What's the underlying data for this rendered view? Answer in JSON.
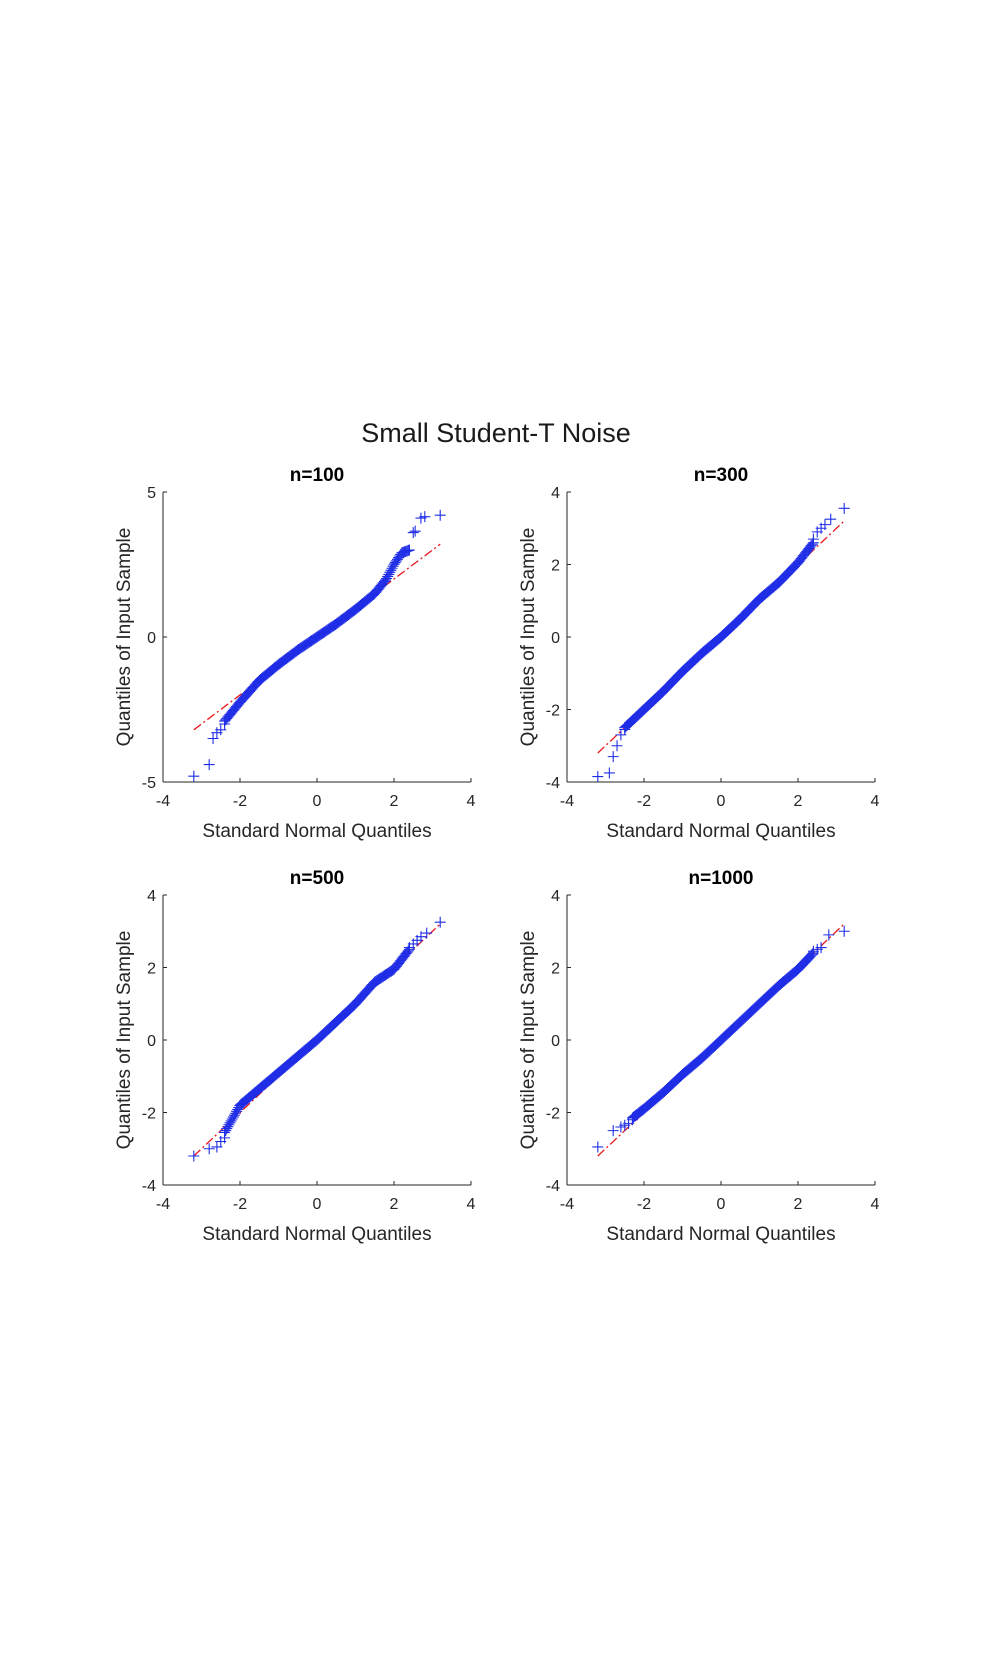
{
  "figure_title": "Small Student-T Noise",
  "colors": {
    "points": "#1f2de6",
    "fit_line": "#e8161b",
    "axes": "#262626"
  },
  "chart_data": [
    {
      "type": "scatter",
      "title": "n=100",
      "xlabel": "Standard Normal Quantiles",
      "ylabel": "Quantiles of Input Sample",
      "xlim": [
        -4,
        4
      ],
      "ylim": [
        -5,
        5
      ],
      "xticks": [
        -4,
        -2,
        0,
        2,
        4
      ],
      "yticks": [
        -5,
        0,
        5
      ],
      "marker": "plus",
      "reference_line": {
        "x": [
          -3.2,
          3.2
        ],
        "y": [
          -3.2,
          3.2
        ]
      },
      "sparse_points": {
        "x": [
          -3.2,
          -2.8,
          -2.7,
          -2.6,
          -2.5,
          -2.4,
          2.4,
          2.5,
          2.55,
          2.7,
          2.8,
          3.2
        ],
        "y": [
          -4.8,
          -4.4,
          -3.5,
          -3.3,
          -3.2,
          -3.0,
          3.0,
          3.6,
          3.65,
          4.1,
          4.15,
          4.2
        ]
      },
      "dense_curve": {
        "x": [
          -2.4,
          -2.0,
          -1.5,
          -1.0,
          -0.5,
          0.0,
          0.5,
          1.0,
          1.5,
          1.8,
          2.0,
          2.2,
          2.4
        ],
        "y": [
          -2.9,
          -2.25,
          -1.5,
          -0.95,
          -0.45,
          0.0,
          0.45,
          0.95,
          1.5,
          2.0,
          2.5,
          2.9,
          3.0
        ]
      }
    },
    {
      "type": "scatter",
      "title": "n=300",
      "xlabel": "Standard Normal Quantiles",
      "ylabel": "Quantiles of Input Sample",
      "xlim": [
        -4,
        4
      ],
      "ylim": [
        -4,
        4
      ],
      "xticks": [
        -4,
        -2,
        0,
        2,
        4
      ],
      "yticks": [
        -4,
        -2,
        0,
        2,
        4
      ],
      "marker": "plus",
      "reference_line": {
        "x": [
          -3.2,
          3.2
        ],
        "y": [
          -3.2,
          3.2
        ]
      },
      "sparse_points": {
        "x": [
          -3.2,
          -2.9,
          -2.8,
          -2.7,
          -2.6,
          -2.5,
          2.4,
          2.5,
          2.6,
          2.7,
          2.85,
          3.2
        ],
        "y": [
          -3.85,
          -3.75,
          -3.3,
          -3.0,
          -2.7,
          -2.55,
          2.7,
          2.9,
          3.0,
          3.1,
          3.25,
          3.55
        ]
      },
      "dense_curve": {
        "x": [
          -2.5,
          -2.0,
          -1.5,
          -1.0,
          -0.5,
          0.0,
          0.5,
          1.0,
          1.5,
          2.0,
          2.4
        ],
        "y": [
          -2.5,
          -2.0,
          -1.5,
          -0.95,
          -0.45,
          0.0,
          0.5,
          1.05,
          1.5,
          2.05,
          2.6
        ]
      }
    },
    {
      "type": "scatter",
      "title": "n=500",
      "xlabel": "Standard Normal Quantiles",
      "ylabel": "Quantiles of Input Sample",
      "xlim": [
        -4,
        4
      ],
      "ylim": [
        -4,
        4
      ],
      "xticks": [
        -4,
        -2,
        0,
        2,
        4
      ],
      "yticks": [
        -4,
        -2,
        0,
        2,
        4
      ],
      "marker": "plus",
      "reference_line": {
        "x": [
          -3.2,
          3.2
        ],
        "y": [
          -3.2,
          3.2
        ]
      },
      "sparse_points": {
        "x": [
          -3.2,
          -2.8,
          -2.6,
          -2.5,
          -2.4,
          2.4,
          2.5,
          2.6,
          2.7,
          2.85,
          3.2
        ],
        "y": [
          -3.2,
          -3.0,
          -2.95,
          -2.8,
          -2.7,
          2.55,
          2.65,
          2.75,
          2.85,
          2.95,
          3.25
        ]
      },
      "dense_curve": {
        "x": [
          -2.4,
          -2.0,
          -1.5,
          -1.0,
          -0.5,
          0.0,
          0.5,
          1.0,
          1.5,
          2.0,
          2.4
        ],
        "y": [
          -2.55,
          -1.8,
          -1.35,
          -0.9,
          -0.45,
          0.0,
          0.5,
          1.0,
          1.6,
          1.95,
          2.5
        ]
      }
    },
    {
      "type": "scatter",
      "title": "n=1000",
      "xlabel": "Standard Normal Quantiles",
      "ylabel": "Quantiles of Input Sample",
      "xlim": [
        -4,
        4
      ],
      "ylim": [
        -4,
        4
      ],
      "xticks": [
        -4,
        -2,
        0,
        2,
        4
      ],
      "yticks": [
        -4,
        -2,
        0,
        2,
        4
      ],
      "marker": "plus",
      "reference_line": {
        "x": [
          -3.2,
          3.2
        ],
        "y": [
          -3.2,
          3.2
        ]
      },
      "sparse_points": {
        "x": [
          -3.2,
          -2.8,
          -2.6,
          -2.5,
          -2.4,
          -2.3,
          2.4,
          2.5,
          2.6,
          2.8,
          3.2
        ],
        "y": [
          -2.95,
          -2.5,
          -2.4,
          -2.35,
          -2.3,
          -2.2,
          2.45,
          2.5,
          2.55,
          2.9,
          3.0
        ]
      },
      "dense_curve": {
        "x": [
          -2.3,
          -2.0,
          -1.5,
          -1.0,
          -0.5,
          0.0,
          0.5,
          1.0,
          1.5,
          2.0,
          2.4
        ],
        "y": [
          -2.15,
          -1.9,
          -1.45,
          -0.95,
          -0.5,
          0.0,
          0.5,
          1.0,
          1.5,
          1.95,
          2.4
        ]
      }
    }
  ]
}
